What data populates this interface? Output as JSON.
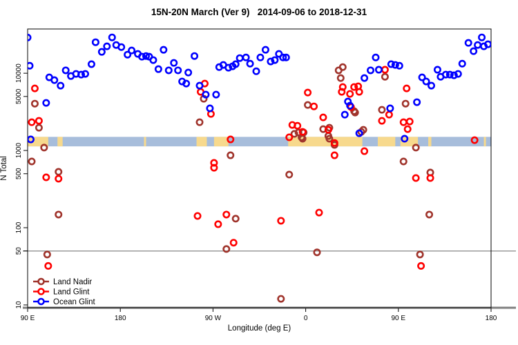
{
  "title": "15N-20N March (Ver 9)   2014-09-06 to 2018-12-31",
  "colors": {
    "background": "#ffffff",
    "plot_border": "#000000",
    "axis_heavy_line": "#7f7f7f",
    "reference_line": "#9a9a9a",
    "band_ocean": "#a7bddb",
    "band_land": "#f7d98d",
    "land_nadir": "#a0342c",
    "land_glint": "#ff0000",
    "ocean_glint": "#0000ff"
  },
  "chart_data": {
    "type": "scatter",
    "title": "15N-20N March (Ver 9)   2014-09-06 to 2018-12-31",
    "xlabel": "Longitude (deg E)",
    "ylabel": "N Total",
    "x_axis": {
      "range_deg": [
        90,
        540
      ],
      "note": "longitude wraps eastward: 90E -> 180 -> 90W -> 0 -> 90E -> 180",
      "ticks": [
        {
          "pos": 90,
          "label": "90 E"
        },
        {
          "pos": 180,
          "label": "180"
        },
        {
          "pos": 270,
          "label": "90 W"
        },
        {
          "pos": 360,
          "label": "0"
        },
        {
          "pos": 450,
          "label": "90 E"
        },
        {
          "pos": 540,
          "label": "180"
        }
      ]
    },
    "y_axis": {
      "scale": "log",
      "range": [
        9.2,
        37400
      ],
      "ticks": [
        {
          "value": 10000,
          "label": "10000"
        },
        {
          "value": 5000,
          "label": "5000"
        },
        {
          "value": 1000,
          "label": "1000"
        },
        {
          "value": 500,
          "label": "500"
        },
        {
          "value": 100,
          "label": "100"
        },
        {
          "value": 50,
          "label": "50"
        },
        {
          "value": 10,
          "label": "10"
        }
      ]
    },
    "reference_line": {
      "value": 50
    },
    "map_band": {
      "n_top": 1500,
      "n_bottom": 1130,
      "land_segments_deg": [
        [
          90,
          110
        ],
        [
          119,
          124
        ],
        [
          203,
          205
        ],
        [
          254,
          264
        ],
        [
          271,
          285
        ],
        [
          343,
          415
        ],
        [
          430,
          447
        ],
        [
          452,
          469
        ],
        [
          479,
          482
        ],
        [
          533,
          535
        ]
      ]
    },
    "legend": {
      "position": "bottom-left",
      "items": [
        "Land Nadir",
        "Land Glint",
        "Ocean Glint"
      ]
    },
    "series": [
      {
        "name": "Land Nadir",
        "color_key": "land_nadir",
        "symbol": "open-circle",
        "points": [
          [
            97,
            4040
          ],
          [
            101,
            1970
          ],
          [
            106,
            1090
          ],
          [
            94,
            720
          ],
          [
            120,
            529
          ],
          [
            120,
            148
          ],
          [
            109,
            45
          ],
          [
            261,
            4670
          ],
          [
            257,
            2320
          ],
          [
            287,
            866
          ],
          [
            292,
            131
          ],
          [
            283,
            53
          ],
          [
            336,
            12
          ],
          [
            344,
            487
          ],
          [
            349,
            1640
          ],
          [
            353,
            1710
          ],
          [
            356,
            1480
          ],
          [
            357,
            1420
          ],
          [
            358,
            1710
          ],
          [
            362,
            3880
          ],
          [
            371,
            48
          ],
          [
            377,
            1890
          ],
          [
            382,
            1540
          ],
          [
            383,
            1970
          ],
          [
            383,
            1420
          ],
          [
            388,
            1180
          ],
          [
            392,
            10900
          ],
          [
            394,
            8660
          ],
          [
            396,
            12000
          ],
          [
            407,
            3230
          ],
          [
            408,
            3100
          ],
          [
            414,
            1740
          ],
          [
            416,
            1850
          ],
          [
            434,
            3360
          ],
          [
            437,
            9000
          ],
          [
            455,
            720
          ],
          [
            457,
            4040
          ],
          [
            467,
            1090
          ],
          [
            471,
            45
          ],
          [
            480,
            148
          ],
          [
            481,
            518
          ]
        ]
      },
      {
        "name": "Land Glint",
        "color_key": "land_glint",
        "symbol": "open-circle",
        "points": [
          [
            97,
            6360
          ],
          [
            94,
            2320
          ],
          [
            101,
            2420
          ],
          [
            108,
            449
          ],
          [
            120,
            431
          ],
          [
            110,
            32
          ],
          [
            262,
            7350
          ],
          [
            258,
            5740
          ],
          [
            268,
            2970
          ],
          [
            287,
            1390
          ],
          [
            271,
            691
          ],
          [
            271,
            598
          ],
          [
            255,
            142
          ],
          [
            283,
            148
          ],
          [
            275,
            111
          ],
          [
            290,
            64
          ],
          [
            336,
            123
          ],
          [
            344,
            1480
          ],
          [
            347,
            2140
          ],
          [
            352,
            2090
          ],
          [
            357,
            1740
          ],
          [
            362,
            5620
          ],
          [
            368,
            3720
          ],
          [
            377,
            2680
          ],
          [
            382,
            1850
          ],
          [
            388,
            1250
          ],
          [
            388,
            866
          ],
          [
            373,
            157
          ],
          [
            395,
            5740
          ],
          [
            396,
            6630
          ],
          [
            403,
            5400
          ],
          [
            407,
            6630
          ],
          [
            411,
            6770
          ],
          [
            412,
            5740
          ],
          [
            404,
            3650
          ],
          [
            417,
            980
          ],
          [
            437,
            11100
          ],
          [
            441,
            2910
          ],
          [
            458,
            6360
          ],
          [
            434,
            2420
          ],
          [
            455,
            2320
          ],
          [
            461,
            2370
          ],
          [
            459,
            1890
          ],
          [
            467,
            440
          ],
          [
            481,
            440
          ],
          [
            472,
            32
          ],
          [
            524,
            1360
          ]
        ]
      },
      {
        "name": "Ocean Glint",
        "color_key": "ocean_glint",
        "symbol": "open-circle",
        "points": [
          [
            90,
            29000
          ],
          [
            92,
            12500
          ],
          [
            93,
            1390
          ],
          [
            108,
            4130
          ],
          [
            111,
            8840
          ],
          [
            116,
            8140
          ],
          [
            122,
            6910
          ],
          [
            127,
            10900
          ],
          [
            132,
            9200
          ],
          [
            137,
            9800
          ],
          [
            142,
            9600
          ],
          [
            146,
            9800
          ],
          [
            152,
            13100
          ],
          [
            156,
            25200
          ],
          [
            162,
            18900
          ],
          [
            167,
            22300
          ],
          [
            172,
            29100
          ],
          [
            176,
            23200
          ],
          [
            181,
            21800
          ],
          [
            187,
            17400
          ],
          [
            191,
            19700
          ],
          [
            197,
            17800
          ],
          [
            201,
            16400
          ],
          [
            205,
            16700
          ],
          [
            208,
            16400
          ],
          [
            212,
            14800
          ],
          [
            217,
            11300
          ],
          [
            222,
            20100
          ],
          [
            227,
            10900
          ],
          [
            232,
            13600
          ],
          [
            236,
            10900
          ],
          [
            240,
            7820
          ],
          [
            244,
            7350
          ],
          [
            246,
            10200
          ],
          [
            252,
            16700
          ],
          [
            257,
            6910
          ],
          [
            263,
            5290
          ],
          [
            267,
            3510
          ],
          [
            273,
            5290
          ],
          [
            276,
            12000
          ],
          [
            280,
            12800
          ],
          [
            285,
            11800
          ],
          [
            289,
            12300
          ],
          [
            292,
            13100
          ],
          [
            296,
            15700
          ],
          [
            302,
            16000
          ],
          [
            306,
            13300
          ],
          [
            312,
            10600
          ],
          [
            316,
            16000
          ],
          [
            321,
            20100
          ],
          [
            326,
            14200
          ],
          [
            330,
            14800
          ],
          [
            334,
            17800
          ],
          [
            338,
            16000
          ],
          [
            341,
            16000
          ],
          [
            398,
            2910
          ],
          [
            401,
            4300
          ],
          [
            403,
            3800
          ],
          [
            412,
            1670
          ],
          [
            417,
            8660
          ],
          [
            423,
            10900
          ],
          [
            428,
            16000
          ],
          [
            431,
            11100
          ],
          [
            442,
            3510
          ],
          [
            443,
            13100
          ],
          [
            447,
            12800
          ],
          [
            451,
            12500
          ],
          [
            456,
            1420
          ],
          [
            468,
            4220
          ],
          [
            473,
            8840
          ],
          [
            477,
            7820
          ],
          [
            482,
            6910
          ],
          [
            488,
            11100
          ],
          [
            491,
            9000
          ],
          [
            496,
            9600
          ],
          [
            500,
            9600
          ],
          [
            504,
            9400
          ],
          [
            508,
            9800
          ],
          [
            512,
            13300
          ],
          [
            518,
            24700
          ],
          [
            523,
            19300
          ],
          [
            527,
            23200
          ],
          [
            531,
            29100
          ],
          [
            533,
            22300
          ],
          [
            537,
            23700
          ]
        ]
      }
    ]
  }
}
